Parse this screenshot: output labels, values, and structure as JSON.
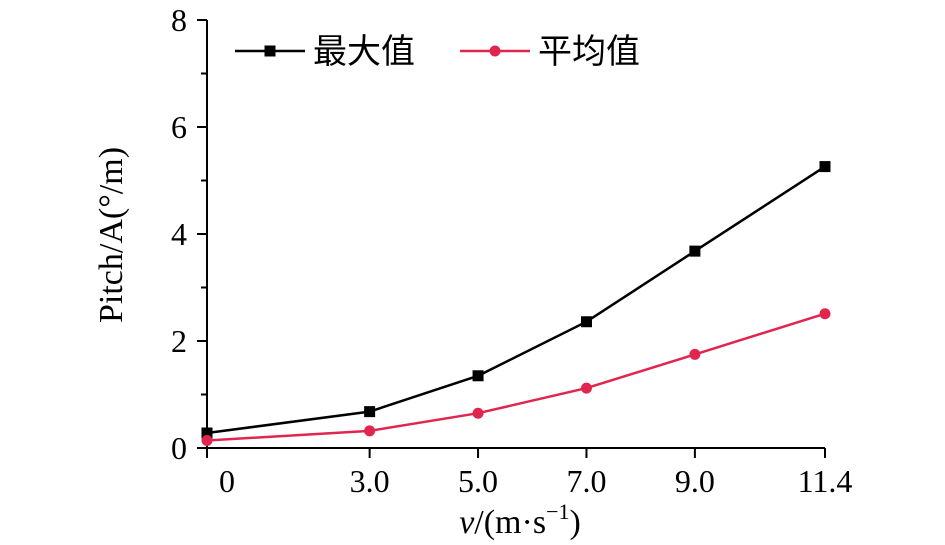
{
  "chart_data": {
    "type": "line",
    "x": [
      0,
      3.0,
      5.0,
      7.0,
      9.0,
      11.4
    ],
    "x_tick_labels": [
      "0",
      "3.0",
      "5.0",
      "7.0",
      "9.0",
      "11.4"
    ],
    "series": [
      {
        "name": "最大值",
        "values": [
          0.28,
          0.68,
          1.35,
          2.36,
          3.68,
          5.26
        ],
        "color": "#000000",
        "marker": "square"
      },
      {
        "name": "平均值",
        "values": [
          0.14,
          0.32,
          0.65,
          1.12,
          1.75,
          2.51
        ],
        "color": "#e0264f",
        "marker": "circle"
      }
    ],
    "xlabel": {
      "var": "v",
      "rest": "/(m·s",
      "sup": "−1",
      "close": ")"
    },
    "ylabel": "Pitch/A(°/m)",
    "ylim": [
      0,
      8
    ],
    "y_ticks": [
      0,
      2,
      4,
      6,
      8
    ],
    "y_tick_labels": [
      "0",
      "2",
      "4",
      "6",
      "8"
    ],
    "grid": false,
    "legend_position": "top-left"
  }
}
